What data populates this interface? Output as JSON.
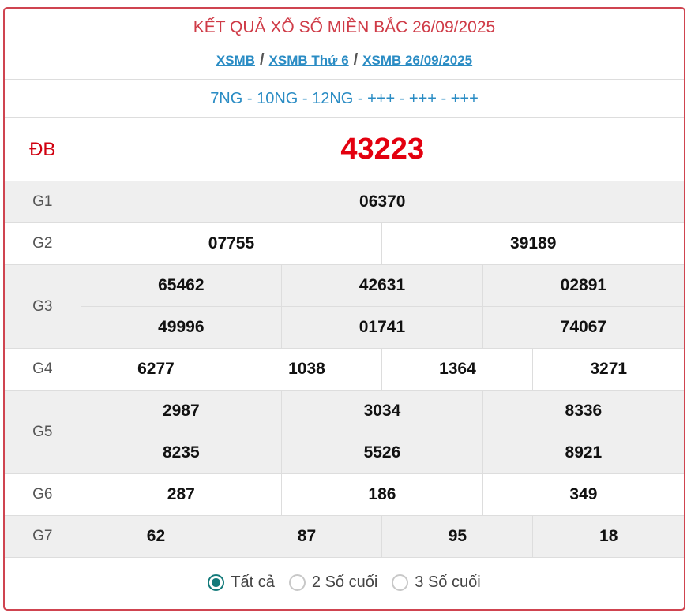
{
  "header": {
    "title": "KẾT QUẢ XỔ SỐ MIỀN BẮC 26/09/2025",
    "breadcrumb": [
      "XSMB",
      "XSMB Thứ 6",
      "XSMB 26/09/2025"
    ],
    "separator": "/",
    "codes": "7NG - 10NG - 12NG - +++ - +++ - +++"
  },
  "prizes": {
    "db": {
      "label": "ĐB",
      "numbers": [
        "43223"
      ]
    },
    "g1": {
      "label": "G1",
      "numbers": [
        "06370"
      ]
    },
    "g2": {
      "label": "G2",
      "numbers": [
        "07755",
        "39189"
      ]
    },
    "g3": {
      "label": "G3",
      "numbers": [
        "65462",
        "42631",
        "02891",
        "49996",
        "01741",
        "74067"
      ]
    },
    "g4": {
      "label": "G4",
      "numbers": [
        "6277",
        "1038",
        "1364",
        "3271"
      ]
    },
    "g5": {
      "label": "G5",
      "numbers": [
        "2987",
        "3034",
        "8336",
        "8235",
        "5526",
        "8921"
      ]
    },
    "g6": {
      "label": "G6",
      "numbers": [
        "287",
        "186",
        "349"
      ]
    },
    "g7": {
      "label": "G7",
      "numbers": [
        "62",
        "87",
        "95",
        "18"
      ]
    }
  },
  "filter": {
    "options": [
      {
        "label": "Tất cả",
        "selected": true
      },
      {
        "label": "2 Số cuối",
        "selected": false
      },
      {
        "label": "3 Số cuối",
        "selected": false
      }
    ]
  },
  "colors": {
    "accent": "#cf4450",
    "link": "#2a8cc4",
    "special": "#e3000f",
    "radio": "#137a7a"
  }
}
